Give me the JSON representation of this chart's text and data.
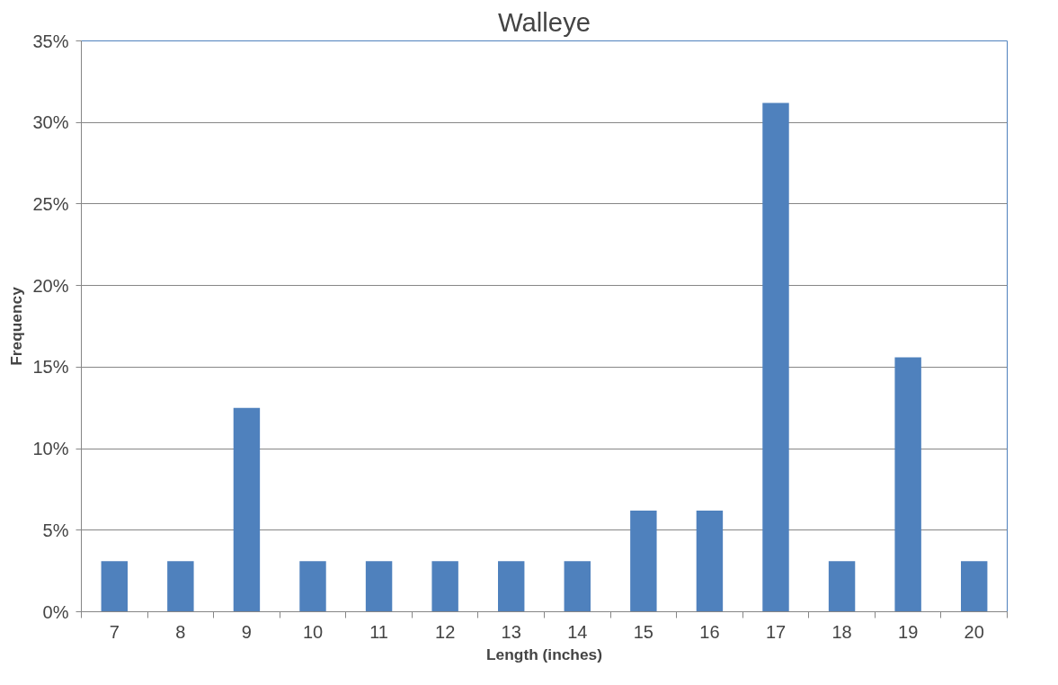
{
  "chart_data": {
    "type": "bar",
    "title": "Walleye",
    "xlabel": "Length (inches)",
    "ylabel": "Frequency",
    "categories": [
      "7",
      "8",
      "9",
      "10",
      "11",
      "12",
      "13",
      "14",
      "15",
      "16",
      "17",
      "18",
      "19",
      "20"
    ],
    "values": [
      3.1,
      3.1,
      12.5,
      3.1,
      3.1,
      3.1,
      3.1,
      3.1,
      6.2,
      6.2,
      31.2,
      3.1,
      15.6,
      3.1
    ],
    "color": "#4f81bd",
    "ylim": [
      0,
      35
    ],
    "yticks": [
      {
        "value": 0,
        "label": "0%"
      },
      {
        "value": 5,
        "label": "5%"
      },
      {
        "value": 10,
        "label": "10%"
      },
      {
        "value": 15,
        "label": "15%"
      },
      {
        "value": 20,
        "label": "20%"
      },
      {
        "value": 25,
        "label": "25%"
      },
      {
        "value": 30,
        "label": "30%"
      },
      {
        "value": 35,
        "label": "35%"
      }
    ],
    "grid": "y"
  }
}
